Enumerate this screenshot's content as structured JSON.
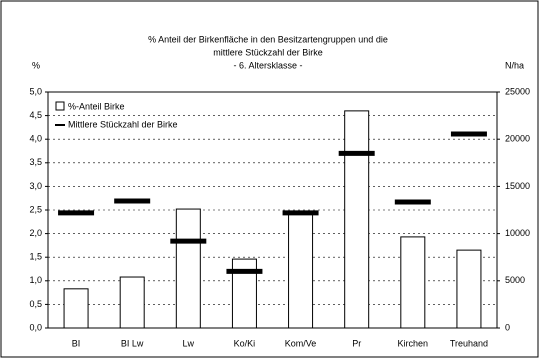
{
  "chart_data": {
    "type": "bar_line",
    "title": [
      "% Anteil der Birkenfläche in den Besitzartengruppen und die",
      "mittlere Stückzahl der Birke",
      "- 6. Altersklasse -"
    ],
    "y_label": "%",
    "y2_label": "N/ha",
    "categories": [
      "BI",
      "BI Lw",
      "Lw",
      "Ko/Ki",
      "Kom/Ve",
      "Pr",
      "Kirchen",
      "Treuhand"
    ],
    "series": [
      {
        "name": "%-Anteil Birke",
        "color": "#ffffff",
        "values": [
          0.83,
          1.08,
          2.52,
          1.46,
          2.46,
          4.6,
          1.93,
          1.65
        ]
      },
      {
        "name": "Mittlere Stückzahl der Birke",
        "color": "#000000",
        "axis": "y2",
        "values": [
          12200,
          13450,
          9200,
          6000,
          12200,
          18500,
          13350,
          20550
        ]
      }
    ],
    "ylim": [
      0,
      5
    ],
    "yticks": [
      {
        "value": 0,
        "label": "0,0"
      },
      {
        "value": 0.5,
        "label": "0,5"
      },
      {
        "value": 1,
        "label": "1,0"
      },
      {
        "value": 1.5,
        "label": "1,5"
      },
      {
        "value": 2,
        "label": "2,0"
      },
      {
        "value": 2.5,
        "label": "2,5"
      },
      {
        "value": 3,
        "label": "3,0"
      },
      {
        "value": 3.5,
        "label": "3,5"
      },
      {
        "value": 4,
        "label": "4,0"
      },
      {
        "value": 4.5,
        "label": "4,5"
      },
      {
        "value": 5,
        "label": "5,0"
      }
    ],
    "y2lim": [
      0,
      25000
    ],
    "y2ticks": [
      0,
      5000,
      10000,
      15000,
      20000,
      25000
    ]
  }
}
